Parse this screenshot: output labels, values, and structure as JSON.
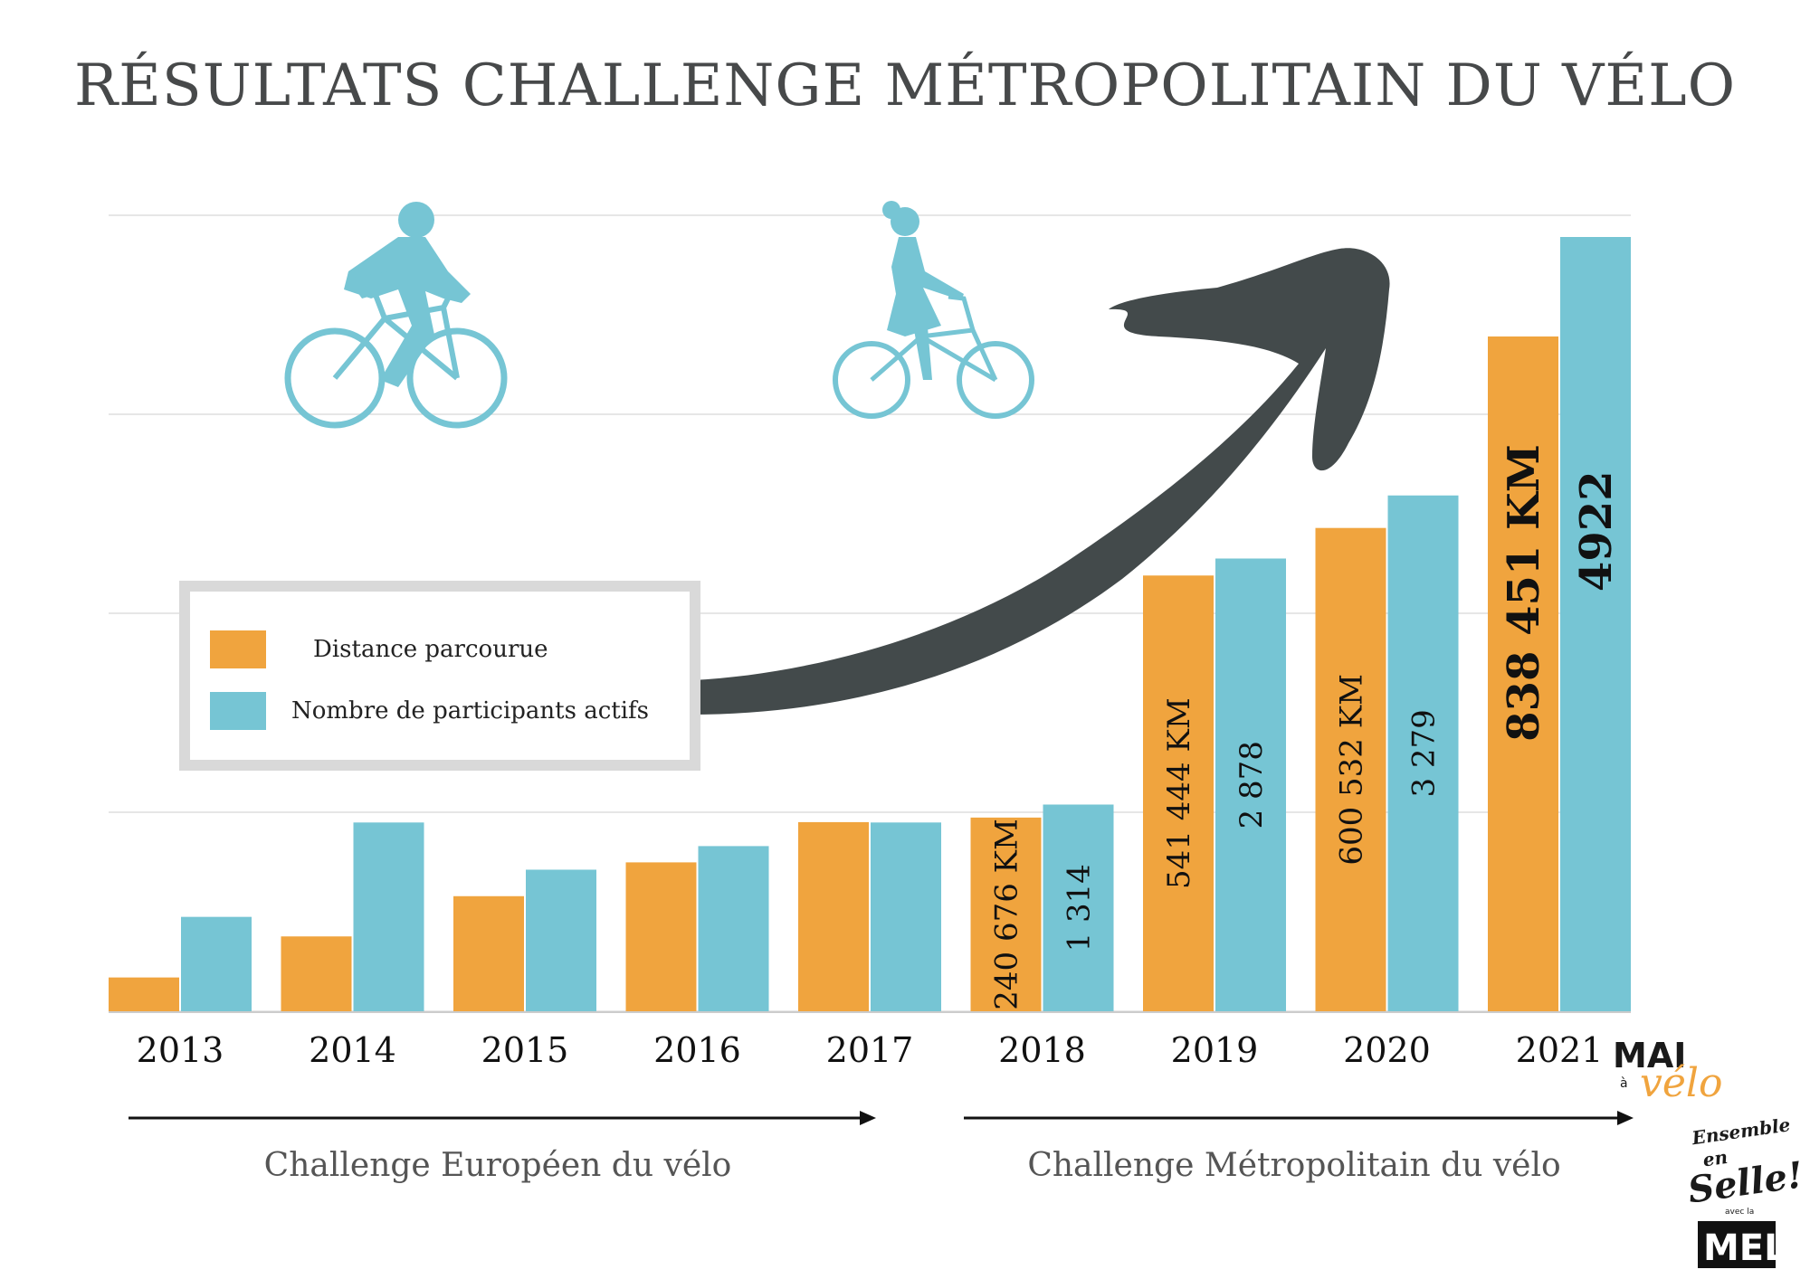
{
  "title": "RÉSULTATS CHALLENGE MÉTROPOLITAIN DU VÉLO",
  "chart_data": {
    "type": "bar",
    "categories": [
      "2013",
      "2014",
      "2015",
      "2016",
      "2017",
      "2018",
      "2019",
      "2020",
      "2021"
    ],
    "series": [
      {
        "name": "Distance parcourue",
        "color": "#f0a43e",
        "values": [
          42000,
          93000,
          143000,
          185000,
          235000,
          240676,
          541444,
          600532,
          838451
        ],
        "labels": [
          "",
          "",
          "",
          "",
          "",
          "240 676 KM",
          "541 444 KM",
          "600 532 KM",
          "838 451 KM"
        ]
      },
      {
        "name": "Nombre de participants actifs",
        "color": "#76c5d4",
        "values": [
          600,
          1200,
          900,
          1050,
          1200,
          1314,
          2878,
          3279,
          4922
        ],
        "labels": [
          "",
          "",
          "",
          "",
          "",
          "1 314",
          "2 878",
          "3 279",
          "4922"
        ]
      }
    ],
    "grid": true,
    "legend": "center-left"
  },
  "legend": {
    "items": [
      {
        "label": "Distance parcourue",
        "color": "#f0a43e"
      },
      {
        "label": "Nombre de participants actifs",
        "color": "#76c5d4"
      }
    ]
  },
  "sections": {
    "european": "Challenge Européen du vélo",
    "metropolitan": "Challenge Métropolitain du vélo"
  },
  "logos": {
    "mai_a_velo": {
      "line1": "MAI",
      "small": "à",
      "script": "vélo"
    },
    "ensemble_en_selle": {
      "line1": "Ensemble",
      "line2": "en",
      "line3": "Selle!",
      "small": "avec la",
      "brand": "MEL"
    }
  },
  "icons": [
    "cyclist-man-icon",
    "cyclist-woman-icon",
    "growth-arrow-icon"
  ],
  "colors": {
    "title": "#47494a",
    "orange": "#f0a43e",
    "blue": "#76c5d4",
    "arrow": "#434a4b",
    "grid": "#dddddd"
  }
}
